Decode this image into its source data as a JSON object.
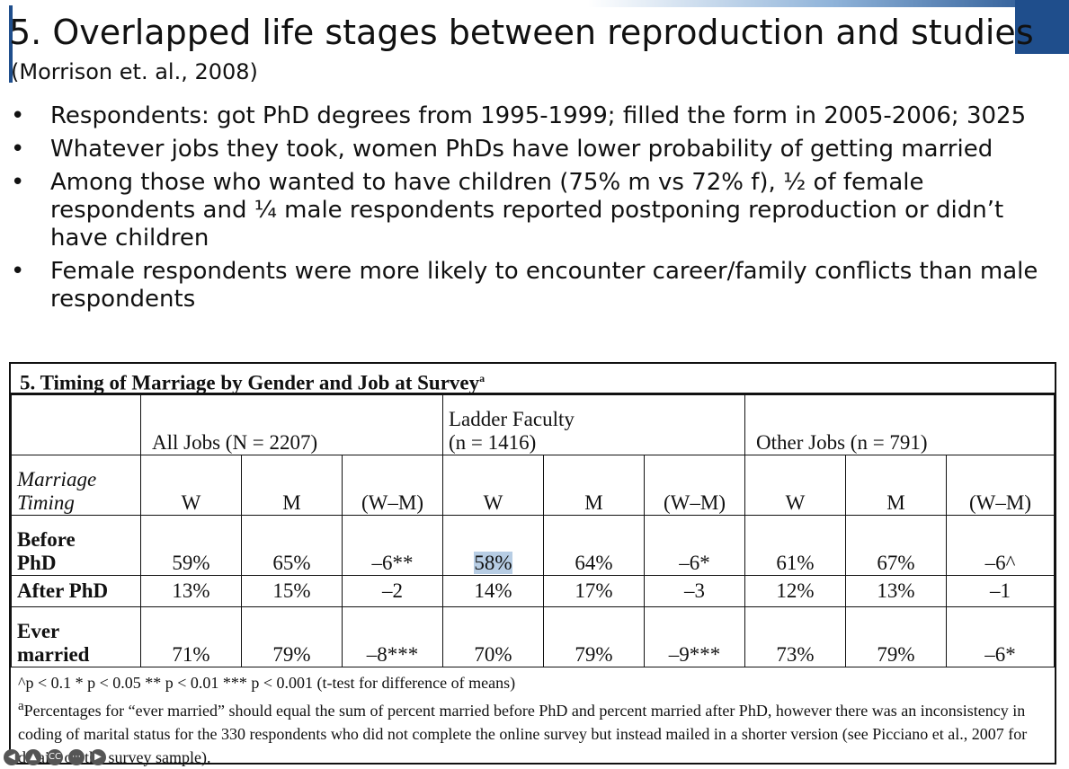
{
  "slide": {
    "title": "5. Overlapped life stages between reproduction and studies",
    "subtitle": "(Morrison et. al., 2008)",
    "bullets": [
      "Respondents: got PhD degrees from 1995-1999; filled the form in 2005-2006;  3025",
      "Whatever jobs they took, women PhDs have lower probability of getting married",
      "Among those who wanted to have children (75% m vs 72% f), ½ of female respondents and ¼ male respondents reported postponing reproduction or didn’t have children",
      "Female respondents were more likely to encounter career/family conflicts than male respondents"
    ],
    "bullet_glyph": "•"
  },
  "table": {
    "caption": "5. Timing of Marriage by Gender and Job at Survey",
    "caption_mark": "a",
    "groups": [
      "All Jobs (N = 2207)",
      "Ladder Faculty",
      "(n = 1416)",
      "Other Jobs (n = 791)"
    ],
    "stub_header": [
      "Marriage",
      "Timing"
    ],
    "columns": [
      "W",
      "M",
      "(W–M)",
      "W",
      "M",
      "(W–M)",
      "W",
      "M",
      "(W–M)"
    ],
    "rows": [
      {
        "label": [
          "Before",
          "PhD"
        ],
        "values": [
          "59%",
          "65%",
          "–6**",
          "58%",
          "64%",
          "–6*",
          "61%",
          "67%",
          "–6^"
        ]
      },
      {
        "label": [
          "After PhD"
        ],
        "values": [
          "13%",
          "15%",
          "–2",
          "14%",
          "17%",
          "–3",
          "12%",
          "13%",
          "–1"
        ]
      },
      {
        "label": [
          "Ever",
          "married"
        ],
        "values": [
          "71%",
          "79%",
          "–8***",
          "70%",
          "79%",
          "–9***",
          "73%",
          "79%",
          "–6*"
        ]
      }
    ],
    "significance_note": "^p < 0.1  * p < 0.05  ** p < 0.01  *** p < 0.001 (t-test for difference of means)",
    "footnote_mark": "a",
    "footnote": "Percentages for “ever married” should equal the sum of percent married before PhD and percent married after PhD, however there was an inconsistency in coding of marital status for the 330 respondents who did not complete the online survey but instead mailed in a shorter version (see Picciano et al., 2007 for details on the survey sample)."
  },
  "player": {
    "icons": [
      "back-icon",
      "accessibility-icon",
      "closed-captions-icon",
      "more-icon",
      "forward-icon"
    ],
    "cc_label": "CC"
  }
}
